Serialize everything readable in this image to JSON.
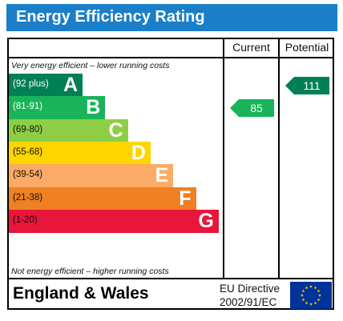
{
  "header": {
    "title": "Energy Efficiency Rating"
  },
  "columns": {
    "current": "Current",
    "potential": "Potential"
  },
  "notes": {
    "top": "Very energy efficient – lower running costs",
    "bottom": "Not energy efficient – higher running costs"
  },
  "chart_data": {
    "type": "bar",
    "categories": [
      "A",
      "B",
      "C",
      "D",
      "E",
      "F",
      "G"
    ],
    "bands": [
      {
        "letter": "A",
        "range": "(92 plus)",
        "min": 92,
        "max": null,
        "color": "#008054",
        "text_color": "#ffffff"
      },
      {
        "letter": "B",
        "range": "(81-91)",
        "min": 81,
        "max": 91,
        "color": "#19b459",
        "text_color": "#ffffff"
      },
      {
        "letter": "C",
        "range": "(69-80)",
        "min": 69,
        "max": 80,
        "color": "#8dce46",
        "text_color": "#111111"
      },
      {
        "letter": "D",
        "range": "(55-68)",
        "min": 55,
        "max": 68,
        "color": "#ffd500",
        "text_color": "#111111"
      },
      {
        "letter": "E",
        "range": "(39-54)",
        "min": 39,
        "max": 54,
        "color": "#fcaa65",
        "text_color": "#111111"
      },
      {
        "letter": "F",
        "range": "(21-38)",
        "min": 21,
        "max": 38,
        "color": "#ef8023",
        "text_color": "#111111"
      },
      {
        "letter": "G",
        "range": "(1-20)",
        "min": 1,
        "max": 20,
        "color": "#e9153b",
        "text_color": "#111111"
      }
    ],
    "current": {
      "value": 85,
      "band": "B",
      "color": "#19b459"
    },
    "potential": {
      "value": 111,
      "band": "A",
      "color": "#008054"
    }
  },
  "footer": {
    "region": "England & Wales",
    "directive_line1": "EU Directive",
    "directive_line2": "2002/91/EC",
    "flag_colors": {
      "background": "#003399",
      "stars": "#ffcc00"
    }
  },
  "colors": {
    "title_bar": "#1a7ec8"
  }
}
